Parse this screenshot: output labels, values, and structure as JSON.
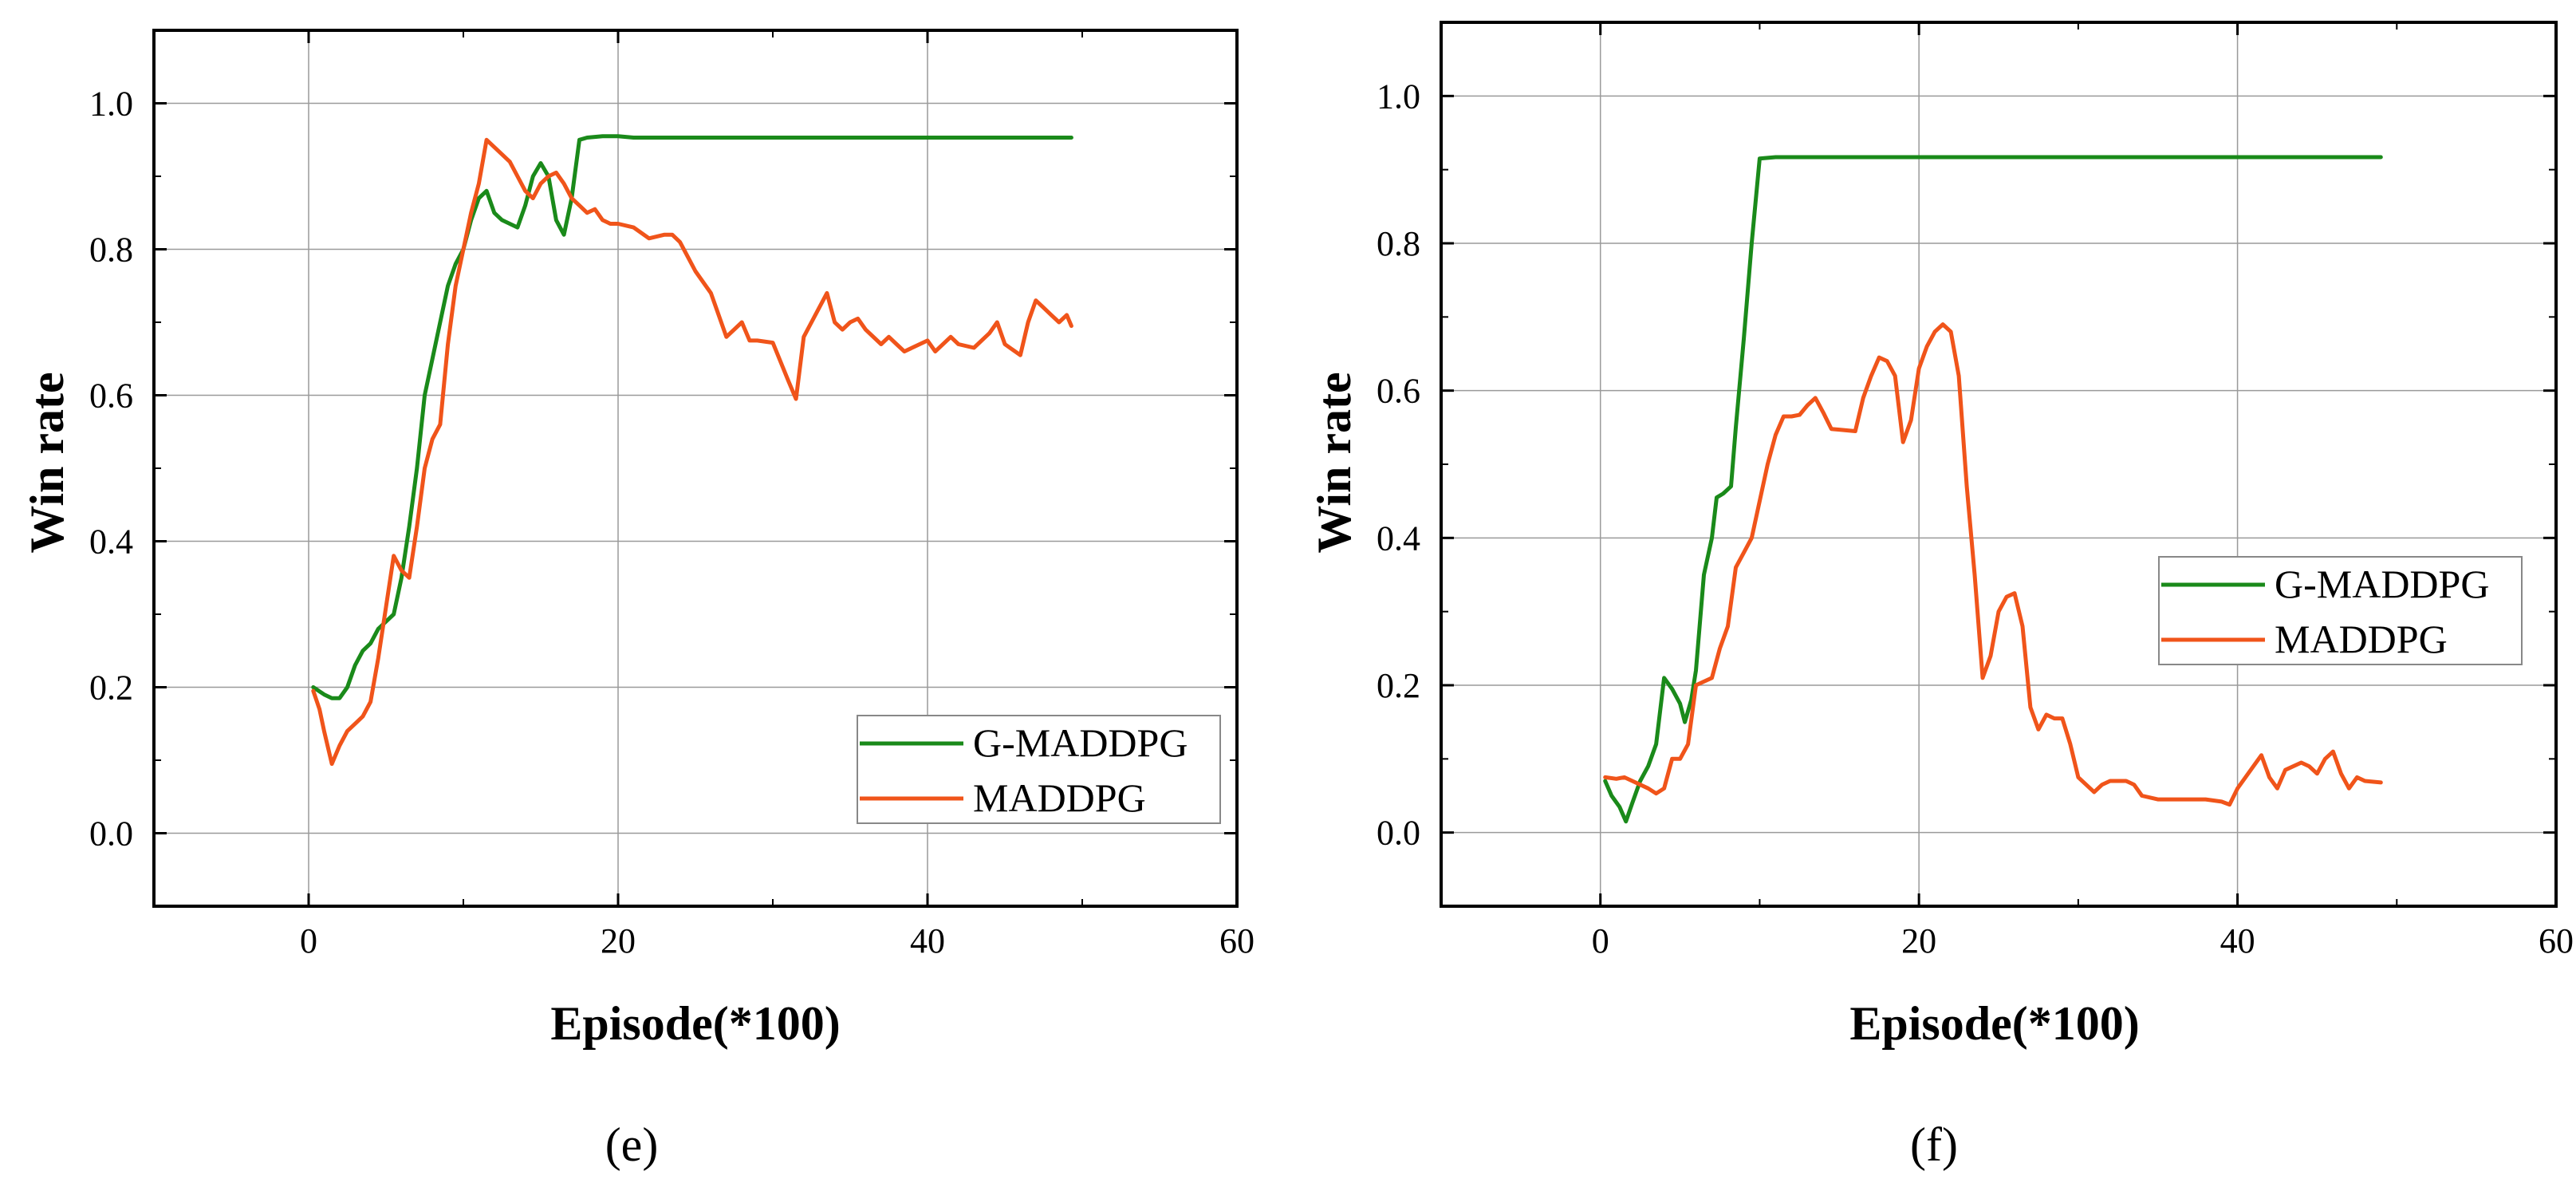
{
  "chart_data": [
    {
      "type": "line",
      "panel_label": "(e)",
      "xlabel": "Episode(*100)",
      "ylabel": "Win rate",
      "xlim": [
        -10,
        60
      ],
      "ylim": [
        -0.1,
        1.1
      ],
      "x_ticks": [
        0,
        20,
        40,
        60
      ],
      "y_ticks": [
        0.0,
        0.2,
        0.4,
        0.6,
        0.8,
        1.0
      ],
      "x_tick_labels": [
        "0",
        "20",
        "40",
        "60"
      ],
      "y_tick_labels": [
        "0.0",
        "0.2",
        "0.4",
        "0.6",
        "0.8",
        "1.0"
      ],
      "grid": true,
      "legend_position": "lower-right",
      "series": [
        {
          "name": "G-MADDPG",
          "color": "#1a8a1a",
          "points": [
            [
              0.3,
              0.2
            ],
            [
              1,
              0.19
            ],
            [
              1.5,
              0.185
            ],
            [
              2,
              0.185
            ],
            [
              2.5,
              0.2
            ],
            [
              3,
              0.23
            ],
            [
              3.5,
              0.25
            ],
            [
              4,
              0.26
            ],
            [
              4.5,
              0.28
            ],
            [
              5,
              0.29
            ],
            [
              5.5,
              0.3
            ],
            [
              6,
              0.35
            ],
            [
              6.5,
              0.42
            ],
            [
              7,
              0.5
            ],
            [
              7.5,
              0.6
            ],
            [
              8,
              0.65
            ],
            [
              8.5,
              0.7
            ],
            [
              9,
              0.75
            ],
            [
              9.5,
              0.78
            ],
            [
              10,
              0.8
            ],
            [
              10.5,
              0.84
            ],
            [
              11,
              0.87
            ],
            [
              11.5,
              0.88
            ],
            [
              12,
              0.85
            ],
            [
              12.5,
              0.84
            ],
            [
              13,
              0.835
            ],
            [
              13.5,
              0.83
            ],
            [
              14,
              0.86
            ],
            [
              14.5,
              0.9
            ],
            [
              15,
              0.918
            ],
            [
              15.5,
              0.9
            ],
            [
              16,
              0.84
            ],
            [
              16.5,
              0.82
            ],
            [
              17,
              0.87
            ],
            [
              17.5,
              0.95
            ],
            [
              18,
              0.953
            ],
            [
              19,
              0.955
            ],
            [
              20,
              0.955
            ],
            [
              21,
              0.953
            ],
            [
              25,
              0.953
            ],
            [
              30,
              0.953
            ],
            [
              35,
              0.953
            ],
            [
              40,
              0.953
            ],
            [
              45,
              0.953
            ],
            [
              49.3,
              0.953
            ]
          ]
        },
        {
          "name": "MADDPG",
          "color": "#f0541a",
          "points": [
            [
              0.3,
              0.195
            ],
            [
              0.7,
              0.17
            ],
            [
              1,
              0.14
            ],
            [
              1.5,
              0.095
            ],
            [
              2,
              0.12
            ],
            [
              2.5,
              0.14
            ],
            [
              3,
              0.15
            ],
            [
              3.5,
              0.16
            ],
            [
              4,
              0.18
            ],
            [
              4.5,
              0.24
            ],
            [
              5,
              0.31
            ],
            [
              5.5,
              0.38
            ],
            [
              6,
              0.36
            ],
            [
              6.5,
              0.35
            ],
            [
              7,
              0.42
            ],
            [
              7.5,
              0.5
            ],
            [
              8,
              0.54
            ],
            [
              8.5,
              0.56
            ],
            [
              9,
              0.67
            ],
            [
              9.5,
              0.75
            ],
            [
              10,
              0.8
            ],
            [
              10.5,
              0.85
            ],
            [
              11,
              0.89
            ],
            [
              11.5,
              0.95
            ],
            [
              12,
              0.94
            ],
            [
              12.5,
              0.93
            ],
            [
              13,
              0.92
            ],
            [
              13.5,
              0.9
            ],
            [
              14,
              0.88
            ],
            [
              14.5,
              0.87
            ],
            [
              15,
              0.89
            ],
            [
              15.5,
              0.9
            ],
            [
              16,
              0.905
            ],
            [
              16.5,
              0.89
            ],
            [
              17,
              0.87
            ],
            [
              17.5,
              0.86
            ],
            [
              18,
              0.85
            ],
            [
              18.5,
              0.855
            ],
            [
              19,
              0.84
            ],
            [
              19.5,
              0.835
            ],
            [
              20,
              0.835
            ],
            [
              21,
              0.83
            ],
            [
              22,
              0.815
            ],
            [
              23,
              0.82
            ],
            [
              23.5,
              0.82
            ],
            [
              24,
              0.81
            ],
            [
              24.5,
              0.79
            ],
            [
              25,
              0.77
            ],
            [
              26,
              0.74
            ],
            [
              27,
              0.68
            ],
            [
              28,
              0.7
            ],
            [
              28.5,
              0.675
            ],
            [
              29,
              0.675
            ],
            [
              30,
              0.672
            ],
            [
              31,
              0.62
            ],
            [
              31.5,
              0.595
            ],
            [
              32,
              0.68
            ],
            [
              33,
              0.72
            ],
            [
              33.5,
              0.74
            ],
            [
              34,
              0.7
            ],
            [
              34.5,
              0.69
            ],
            [
              35,
              0.7
            ],
            [
              35.5,
              0.705
            ],
            [
              36,
              0.69
            ],
            [
              37,
              0.67
            ],
            [
              37.5,
              0.68
            ],
            [
              38,
              0.67
            ],
            [
              38.5,
              0.66
            ],
            [
              39,
              0.665
            ],
            [
              40,
              0.675
            ],
            [
              40.5,
              0.66
            ],
            [
              41.5,
              0.68
            ],
            [
              42,
              0.67
            ],
            [
              43,
              0.665
            ],
            [
              44,
              0.685
            ],
            [
              44.5,
              0.7
            ],
            [
              45,
              0.67
            ],
            [
              46,
              0.655
            ],
            [
              46.5,
              0.7
            ],
            [
              47,
              0.73
            ],
            [
              47.5,
              0.72
            ],
            [
              48,
              0.71
            ],
            [
              48.5,
              0.7
            ],
            [
              49,
              0.71
            ],
            [
              49.3,
              0.695
            ]
          ]
        }
      ]
    },
    {
      "type": "line",
      "panel_label": "(f)",
      "xlabel": "Episode(*100)",
      "ylabel": "Win rate",
      "xlim": [
        -10,
        60
      ],
      "ylim": [
        -0.1,
        1.1
      ],
      "x_ticks": [
        0,
        20,
        40,
        60
      ],
      "y_ticks": [
        0.0,
        0.2,
        0.4,
        0.6,
        0.8,
        1.0
      ],
      "x_tick_labels": [
        "0",
        "20",
        "40",
        "60"
      ],
      "y_tick_labels": [
        "0.0",
        "0.2",
        "0.4",
        "0.6",
        "0.8",
        "1.0"
      ],
      "grid": true,
      "legend_position": "center-right",
      "series": [
        {
          "name": "G-MADDPG",
          "color": "#1a8a1a",
          "points": [
            [
              0.3,
              0.07
            ],
            [
              0.7,
              0.05
            ],
            [
              1.2,
              0.035
            ],
            [
              1.6,
              0.015
            ],
            [
              2,
              0.04
            ],
            [
              2.5,
              0.07
            ],
            [
              3,
              0.09
            ],
            [
              3.5,
              0.12
            ],
            [
              4,
              0.21
            ],
            [
              4.5,
              0.195
            ],
            [
              5,
              0.175
            ],
            [
              5.3,
              0.15
            ],
            [
              5.7,
              0.18
            ],
            [
              6,
              0.22
            ],
            [
              6.5,
              0.35
            ],
            [
              7,
              0.4
            ],
            [
              7.3,
              0.455
            ],
            [
              7.7,
              0.46
            ],
            [
              8.2,
              0.47
            ],
            [
              8.5,
              0.55
            ],
            [
              9,
              0.67
            ],
            [
              9.5,
              0.8
            ],
            [
              10,
              0.915
            ],
            [
              11,
              0.917
            ],
            [
              12,
              0.917
            ],
            [
              15,
              0.917
            ],
            [
              20,
              0.917
            ],
            [
              25,
              0.917
            ],
            [
              30,
              0.917
            ],
            [
              35,
              0.917
            ],
            [
              40,
              0.917
            ],
            [
              45,
              0.917
            ],
            [
              49,
              0.917
            ]
          ]
        },
        {
          "name": "MADDPG",
          "color": "#f0541a",
          "points": [
            [
              0.3,
              0.075
            ],
            [
              1,
              0.073
            ],
            [
              1.5,
              0.075
            ],
            [
              2,
              0.07
            ],
            [
              3,
              0.06
            ],
            [
              3.5,
              0.053
            ],
            [
              4,
              0.06
            ],
            [
              4.5,
              0.1
            ],
            [
              5,
              0.1
            ],
            [
              5.5,
              0.12
            ],
            [
              6,
              0.2
            ],
            [
              6.5,
              0.205
            ],
            [
              7,
              0.21
            ],
            [
              7.5,
              0.25
            ],
            [
              8,
              0.28
            ],
            [
              8.5,
              0.36
            ],
            [
              9,
              0.38
            ],
            [
              9.5,
              0.4
            ],
            [
              10,
              0.45
            ],
            [
              10.5,
              0.5
            ],
            [
              11,
              0.54
            ],
            [
              11.5,
              0.565
            ],
            [
              12,
              0.565
            ],
            [
              12.5,
              0.567
            ],
            [
              13,
              0.58
            ],
            [
              13.5,
              0.59
            ],
            [
              14,
              0.57
            ],
            [
              14.5,
              0.548
            ],
            [
              15,
              0.547
            ],
            [
              16,
              0.545
            ],
            [
              16.5,
              0.59
            ],
            [
              17,
              0.62
            ],
            [
              17.5,
              0.645
            ],
            [
              18,
              0.64
            ],
            [
              18.5,
              0.62
            ],
            [
              19,
              0.53
            ],
            [
              19.5,
              0.56
            ],
            [
              20,
              0.63
            ],
            [
              20.5,
              0.66
            ],
            [
              21,
              0.68
            ],
            [
              21.5,
              0.69
            ],
            [
              22,
              0.68
            ],
            [
              22.5,
              0.62
            ],
            [
              23,
              0.47
            ],
            [
              23.5,
              0.35
            ],
            [
              24,
              0.21
            ],
            [
              24.5,
              0.24
            ],
            [
              25,
              0.3
            ],
            [
              25.5,
              0.32
            ],
            [
              26,
              0.325
            ],
            [
              26.5,
              0.28
            ],
            [
              27,
              0.17
            ],
            [
              27.5,
              0.14
            ],
            [
              28,
              0.16
            ],
            [
              28.5,
              0.155
            ],
            [
              29,
              0.155
            ],
            [
              29.5,
              0.12
            ],
            [
              30,
              0.075
            ],
            [
              31,
              0.055
            ],
            [
              31.5,
              0.065
            ],
            [
              32,
              0.07
            ],
            [
              33,
              0.07
            ],
            [
              33.5,
              0.065
            ],
            [
              34,
              0.05
            ],
            [
              35,
              0.045
            ],
            [
              36,
              0.045
            ],
            [
              37,
              0.045
            ],
            [
              38,
              0.045
            ],
            [
              39,
              0.042
            ],
            [
              39.5,
              0.038
            ],
            [
              40,
              0.06
            ],
            [
              41,
              0.09
            ],
            [
              41.5,
              0.105
            ],
            [
              42,
              0.075
            ],
            [
              42.5,
              0.06
            ],
            [
              43,
              0.085
            ],
            [
              44,
              0.095
            ],
            [
              44.5,
              0.09
            ],
            [
              45,
              0.08
            ],
            [
              45.5,
              0.1
            ],
            [
              46,
              0.11
            ],
            [
              46.5,
              0.08
            ],
            [
              47,
              0.06
            ],
            [
              47.5,
              0.075
            ],
            [
              48,
              0.07
            ],
            [
              49,
              0.068
            ]
          ]
        }
      ]
    }
  ]
}
